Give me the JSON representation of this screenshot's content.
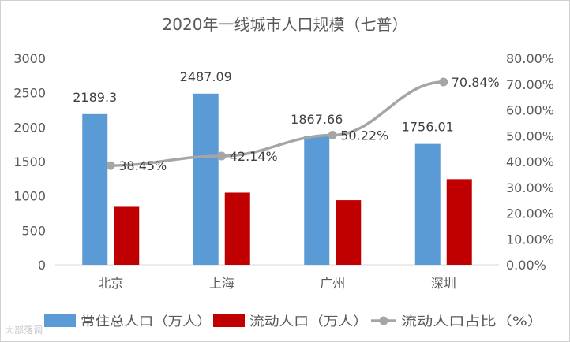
{
  "chart_data": {
    "type": "bar",
    "title": "2020年一线城市人口规模（七普）",
    "categories": [
      "北京",
      "上海",
      "广州",
      "深圳"
    ],
    "series": [
      {
        "name": "常住总人口（万人）",
        "kind": "bar",
        "axis": "left",
        "values": [
          2189.3,
          2487.09,
          1867.66,
          1756.01
        ],
        "data_labels": [
          "2189.3",
          "2487.09",
          "1867.66",
          "1756.01"
        ],
        "color": "#5b9bd5"
      },
      {
        "name": "流动人口（万人）",
        "kind": "bar",
        "axis": "left",
        "values": [
          842,
          1048,
          938,
          1244
        ],
        "color": "#c00000"
      },
      {
        "name": "流动人口占比（%）",
        "kind": "line",
        "axis": "right",
        "values": [
          38.45,
          42.14,
          50.22,
          70.84
        ],
        "data_labels": [
          "38.45%",
          "42.14%",
          "50.22%",
          "70.84%"
        ],
        "color": "#a5a5a5"
      }
    ],
    "ylim": [
      0,
      3000
    ],
    "yticks": [
      "0",
      "500",
      "1000",
      "1500",
      "2000",
      "2500",
      "3000"
    ],
    "y2lim": [
      0,
      80
    ],
    "y2ticks": [
      "0.00%",
      "10.00%",
      "20.00%",
      "30.00%",
      "40.00%",
      "50.00%",
      "60.00%",
      "70.00%",
      "80.00%"
    ],
    "grid": false,
    "legend": "bottom",
    "xlabel": "",
    "ylabel": ""
  },
  "watermark": "大部落调"
}
